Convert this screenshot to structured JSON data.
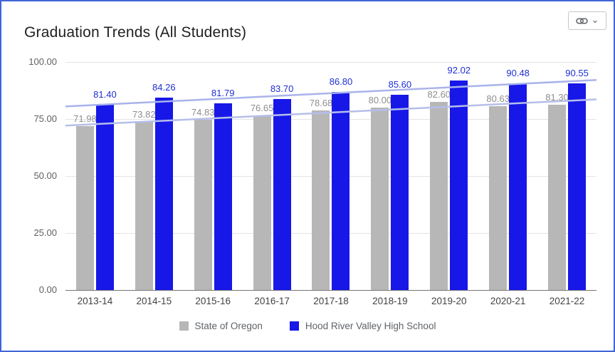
{
  "icons": {
    "header_link": "link-icon",
    "header_chevron": "chevron-down-icon"
  },
  "chart_data": {
    "type": "bar",
    "title": "Graduation Trends (All Students)",
    "categories": [
      "2013-14",
      "2014-15",
      "2015-16",
      "2016-17",
      "2017-18",
      "2018-19",
      "2019-20",
      "2020-21",
      "2021-22"
    ],
    "series": [
      {
        "name": "State of Oregon",
        "color": "#b7b7b7",
        "label_color": "#8e8e8e",
        "values": [
          71.98,
          73.82,
          74.83,
          76.65,
          78.68,
          80.0,
          82.6,
          80.63,
          81.3
        ],
        "labels": [
          "71.98",
          "73.82",
          "74.83",
          "76.65",
          "78.68",
          "80.00",
          "82.60",
          "80.63",
          "81.30"
        ]
      },
      {
        "name": "Hood River Valley High School",
        "color": "#1717e8",
        "label_color": "#1e2fd4",
        "values": [
          81.4,
          84.26,
          81.79,
          83.7,
          86.8,
          85.6,
          92.02,
          90.48,
          90.55
        ],
        "labels": [
          "81.40",
          "84.26",
          "81.79",
          "83.70",
          "86.80",
          "85.60",
          "92.02",
          "90.48",
          "90.55"
        ]
      }
    ],
    "trendlines": [
      {
        "series": "State of Oregon",
        "start": 72.1,
        "end": 83.6,
        "color": "#b6beea"
      },
      {
        "series": "Hood River Valley High School",
        "start": 80.5,
        "end": 92.1,
        "color": "#a9b3ea"
      }
    ],
    "y_ticks": [
      "100.00",
      "75.00",
      "50.00",
      "25.00",
      "0.00"
    ],
    "ylim": [
      0,
      100
    ],
    "grid": true,
    "legend_position": "bottom"
  }
}
